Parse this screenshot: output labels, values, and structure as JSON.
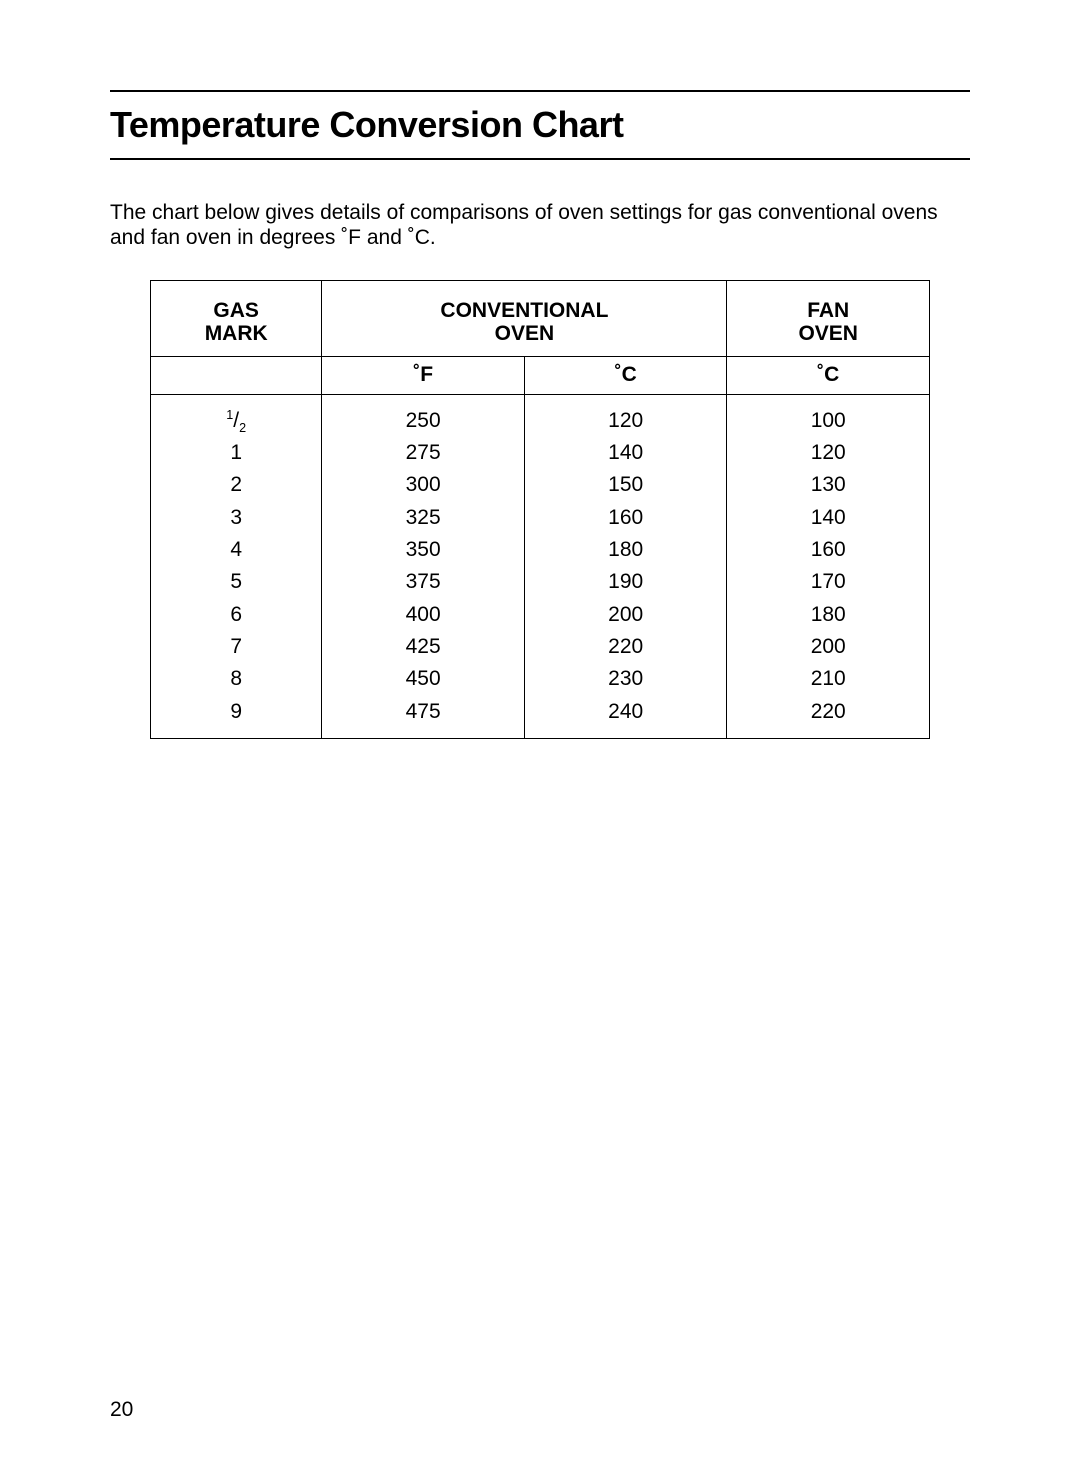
{
  "page": {
    "title": "Temperature Conversion Chart",
    "intro": "The chart below gives details of comparisons of oven settings for gas conventional ovens and fan oven in degrees ˚F and ˚C.",
    "page_number": "20"
  },
  "table": {
    "type": "table",
    "background_color": "#ffffff",
    "border_color": "#000000",
    "border_width": 1.5,
    "font_size": 21,
    "header_font_weight": 700,
    "column_widths_pct": [
      22,
      26,
      26,
      26
    ],
    "group_headers": {
      "gas": "GAS\nMARK",
      "conventional": "CONVENTIONAL\nOVEN",
      "fan": "FAN\nOVEN"
    },
    "sub_headers": {
      "gas": "",
      "conv_f": "˚F",
      "conv_c": "˚C",
      "fan_c": "˚C"
    },
    "rows": [
      {
        "gas": "½",
        "f": "250",
        "c": "120",
        "fan": "100"
      },
      {
        "gas": "1",
        "f": "275",
        "c": "140",
        "fan": "120"
      },
      {
        "gas": "2",
        "f": "300",
        "c": "150",
        "fan": "130"
      },
      {
        "gas": "3",
        "f": "325",
        "c": "160",
        "fan": "140"
      },
      {
        "gas": "4",
        "f": "350",
        "c": "180",
        "fan": "160"
      },
      {
        "gas": "5",
        "f": "375",
        "c": "190",
        "fan": "170"
      },
      {
        "gas": "6",
        "f": "400",
        "c": "200",
        "fan": "180"
      },
      {
        "gas": "7",
        "f": "425",
        "c": "220",
        "fan": "200"
      },
      {
        "gas": "8",
        "f": "450",
        "c": "230",
        "fan": "210"
      },
      {
        "gas": "9",
        "f": "475",
        "c": "240",
        "fan": "220"
      }
    ]
  }
}
